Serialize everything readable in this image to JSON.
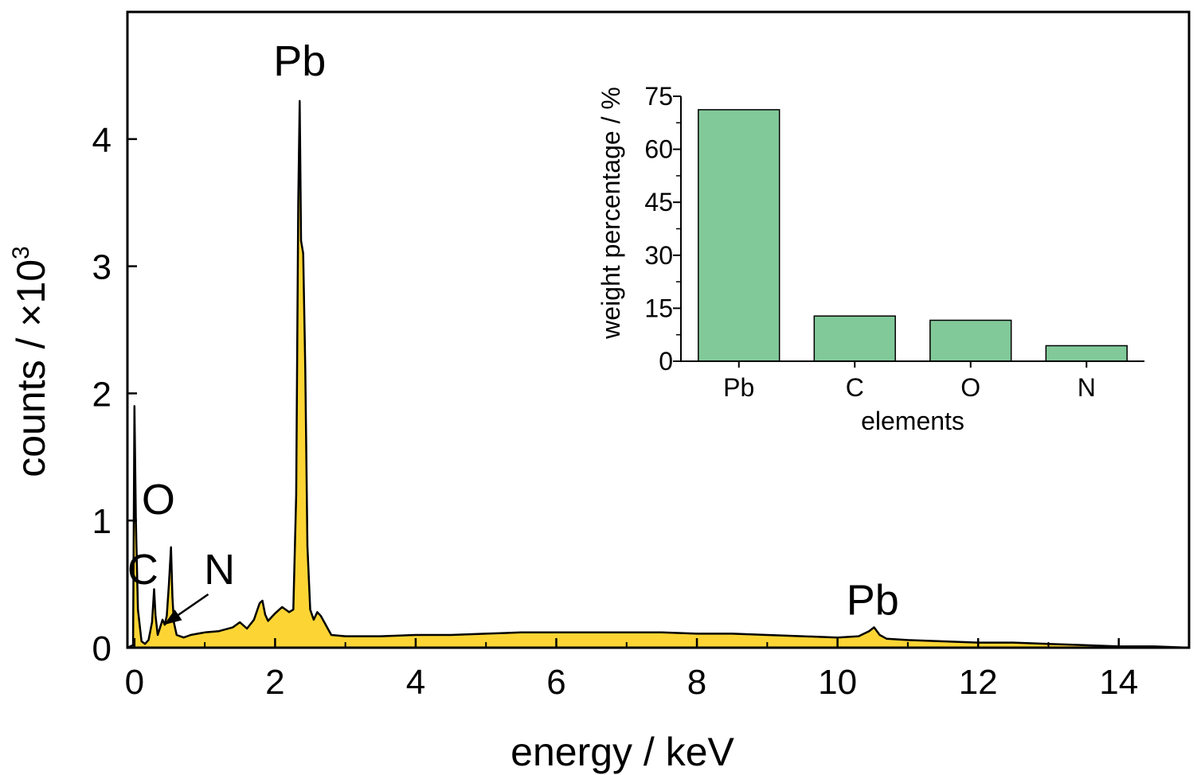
{
  "chart_data": [
    {
      "type": "area",
      "title": "",
      "xlabel": "energy / keV",
      "ylabel_text": "counts / ×10",
      "ylabel_sup": "3",
      "xlim": [
        -0.1,
        15.0
      ],
      "ylim": [
        0,
        5.0
      ],
      "x_ticks": [
        0,
        2,
        4,
        6,
        8,
        10,
        12,
        14
      ],
      "y_ticks": [
        0,
        1,
        2,
        3,
        4
      ],
      "fill_color": "#fcd535",
      "line_color": "#000000",
      "grid": false,
      "series": [
        {
          "x": [
            -0.1,
            -0.02,
            0.0,
            0.02,
            0.05,
            0.1,
            0.15,
            0.2,
            0.25,
            0.28,
            0.3,
            0.33,
            0.36,
            0.4,
            0.43,
            0.46,
            0.49,
            0.52,
            0.54,
            0.56,
            0.6,
            0.7,
            0.8,
            0.9,
            1.0,
            1.2,
            1.4,
            1.5,
            1.6,
            1.7,
            1.78,
            1.82,
            1.86,
            1.9,
            2.0,
            2.1,
            2.2,
            2.26,
            2.3,
            2.33,
            2.35,
            2.37,
            2.4,
            2.43,
            2.46,
            2.5,
            2.55,
            2.6,
            2.65,
            2.7,
            2.8,
            3.0,
            3.5,
            4.0,
            4.5,
            5.0,
            5.5,
            6.0,
            6.5,
            7.0,
            7.5,
            8.0,
            8.5,
            9.0,
            9.5,
            10.0,
            10.3,
            10.45,
            10.52,
            10.6,
            10.7,
            11.0,
            11.5,
            12.0,
            12.5,
            13.0,
            13.5,
            14.0,
            14.5,
            15.0
          ],
          "y": [
            0.0,
            0.02,
            1.9,
            1.0,
            0.3,
            0.05,
            0.03,
            0.06,
            0.2,
            0.46,
            0.25,
            0.1,
            0.15,
            0.22,
            0.18,
            0.25,
            0.5,
            0.79,
            0.4,
            0.2,
            0.1,
            0.08,
            0.1,
            0.11,
            0.12,
            0.13,
            0.16,
            0.2,
            0.15,
            0.22,
            0.35,
            0.37,
            0.26,
            0.21,
            0.27,
            0.32,
            0.28,
            0.3,
            1.2,
            3.5,
            4.3,
            3.2,
            3.1,
            2.2,
            0.8,
            0.3,
            0.22,
            0.28,
            0.25,
            0.2,
            0.1,
            0.09,
            0.09,
            0.1,
            0.1,
            0.11,
            0.12,
            0.12,
            0.12,
            0.12,
            0.12,
            0.11,
            0.11,
            0.1,
            0.09,
            0.08,
            0.09,
            0.13,
            0.16,
            0.1,
            0.07,
            0.06,
            0.05,
            0.04,
            0.04,
            0.03,
            0.02,
            0.01,
            0.01,
            0.0
          ]
        }
      ],
      "annotations": [
        {
          "text": "Pb",
          "x": 2.35,
          "y": 4.5
        },
        {
          "text": "O",
          "x": 0.34,
          "y": 1.05
        },
        {
          "text": "C",
          "x": 0.12,
          "y": 0.5
        },
        {
          "text": "N",
          "x": 1.21,
          "y": 0.5
        },
        {
          "text": "Pb",
          "x": 10.5,
          "y": 0.26
        }
      ]
    },
    {
      "type": "bar",
      "title": "",
      "xlabel": "elements",
      "ylabel": "weight percentage / %",
      "categories": [
        "Pb",
        "C",
        "O",
        "N"
      ],
      "values": [
        71.2,
        12.8,
        11.6,
        4.4
      ],
      "ylim": [
        0,
        75
      ],
      "y_ticks": [
        0,
        15,
        30,
        45,
        60,
        75
      ],
      "bar_color": "#82c99a",
      "grid": false
    }
  ]
}
